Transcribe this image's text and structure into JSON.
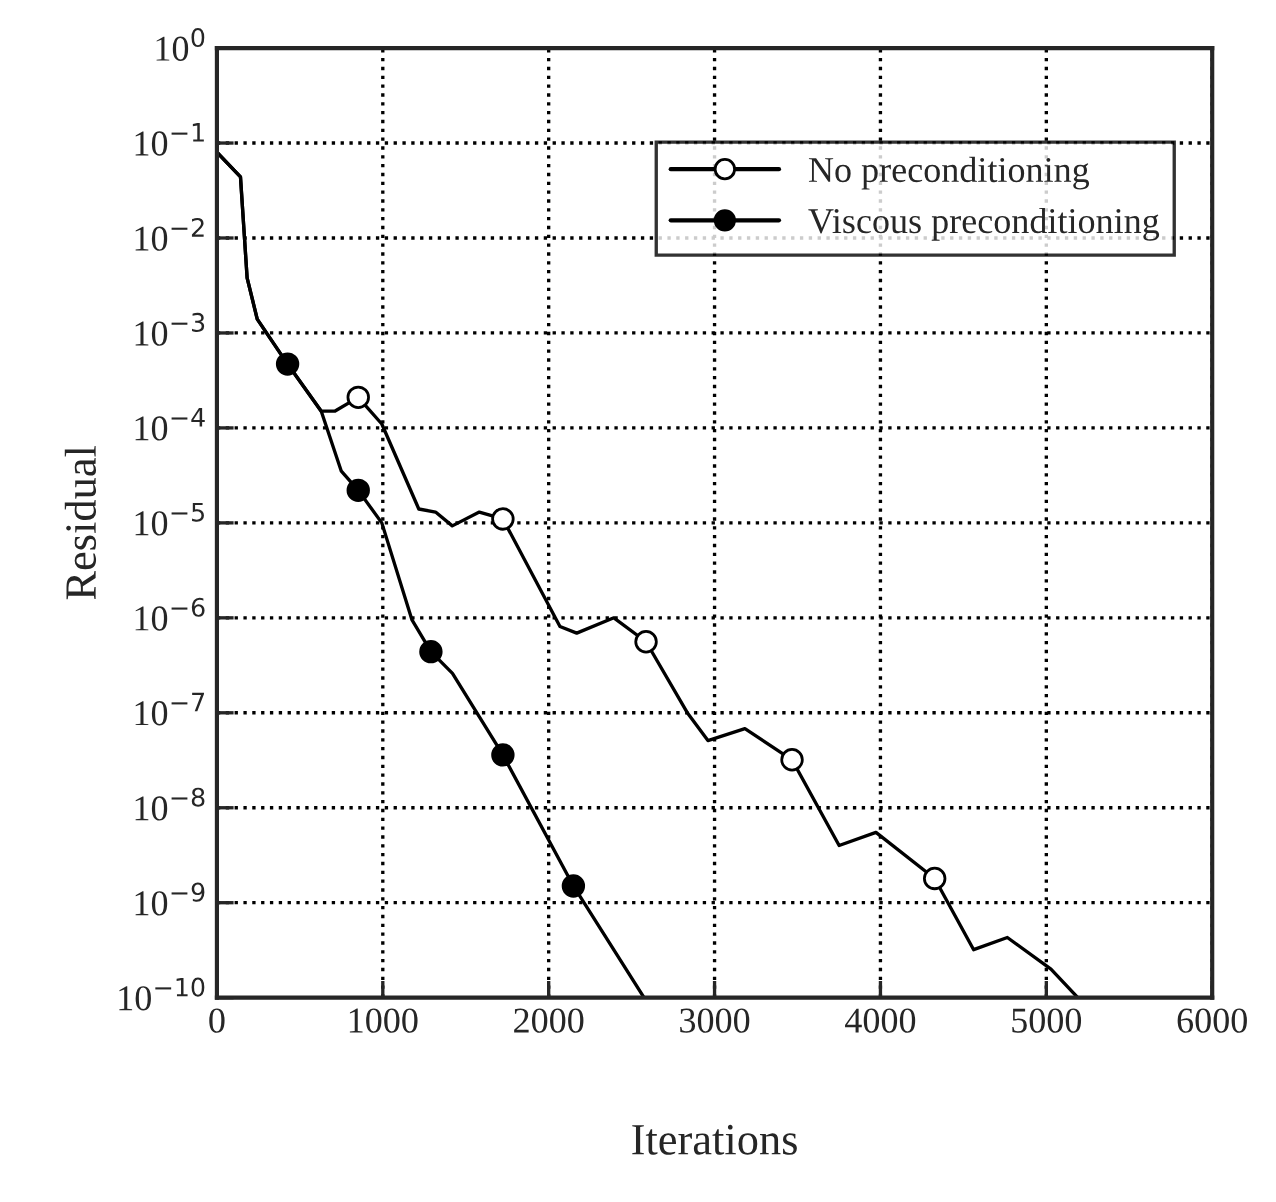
{
  "chart_data": {
    "type": "line",
    "xlabel": "Iterations",
    "ylabel": "Residual",
    "log": "y",
    "grid": true,
    "legend": "top right",
    "line_style": "solid",
    "xlim": [
      0,
      6000
    ],
    "xticks": [
      0,
      1000,
      2000,
      3000,
      4000,
      5000,
      6000
    ],
    "ylim": [
      1e-10,
      1
    ],
    "yticks": [
      {
        "value": 1e-10,
        "label": "10$^{−10}$"
      },
      {
        "value": 1e-09,
        "label": "10$^{−9}$"
      },
      {
        "value": 1e-08,
        "label": "10$^{−8}$"
      },
      {
        "value": 1e-07,
        "label": "10$^{−7}$"
      },
      {
        "value": 1e-06,
        "label": "10$^{−6}$"
      },
      {
        "value": 1e-05,
        "label": "10$^{−5}$"
      },
      {
        "value": 0.0001,
        "label": "10$^{−4}$"
      },
      {
        "value": 0.001,
        "label": "10$^{−3}$"
      },
      {
        "value": 0.01,
        "label": "10$^{−2}$"
      },
      {
        "value": 0.1,
        "label": "10$^{−1}$"
      },
      {
        "value": 1,
        "label": "10$^{0}$"
      }
    ],
    "series": [
      {
        "name": "No preconditioning",
        "color": "#000000",
        "x": [
          0,
          142,
          182,
          243,
          426,
          629,
          710,
          852,
          994,
          1217,
          1318,
          1419,
          1582,
          1724,
          2068,
          2169,
          2393,
          2587,
          2839,
          2960,
          3183,
          3467,
          3751,
          3973,
          4327,
          4562,
          4765,
          5028,
          5190
        ],
        "values": [
          0.08,
          0.044,
          0.0038,
          0.0014,
          0.00047,
          0.00015,
          0.00015,
          0.00021,
          0.00011,
          1.4e-05,
          1.3e-05,
          9.3e-06,
          1.3e-05,
          1.1e-05,
          8.1e-07,
          6.9e-07,
          1e-06,
          5.6e-07,
          9.8e-08,
          5.1e-08,
          6.8e-08,
          3.2e-08,
          4e-09,
          5.5e-09,
          1.8e-09,
          3.2e-10,
          4.3e-10,
          2e-10,
          1e-10
        ]
      },
      {
        "type": "scatter",
        "color": "#ffffff",
        "marker": "circle",
        "x": [
          852,
          1724,
          2587,
          3467,
          4327
        ],
        "values": [
          0.00021,
          1.1e-05,
          5.6e-07,
          3.2e-08,
          1.8e-09
        ]
      },
      {
        "name": "Viscous preconditioning",
        "color": "#000000",
        "x": [
          0,
          142,
          182,
          243,
          426,
          629,
          750,
          852,
          994,
          1176,
          1290,
          1420,
          1724,
          2149,
          2575
        ],
        "values": [
          0.08,
          0.044,
          0.0038,
          0.0014,
          0.00047,
          0.00015,
          3.5e-05,
          2.2e-05,
          1e-05,
          9.5e-07,
          4.4e-07,
          2.6e-07,
          3.6e-08,
          1.5e-09,
          1e-10
        ]
      },
      {
        "type": "scatter",
        "color": "#000000",
        "marker": "circle",
        "x": [
          426,
          852,
          1290,
          1724,
          2149
        ],
        "values": [
          0.00047,
          2.2e-05,
          4.4e-07,
          3.6e-08,
          1.5e-09
        ]
      }
    ]
  }
}
